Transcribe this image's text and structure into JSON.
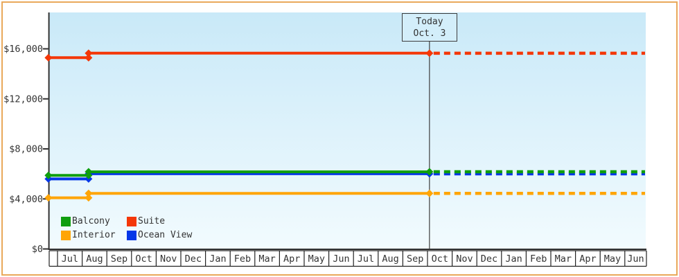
{
  "window": {
    "frame_border_color": "#e9a85a",
    "background_color": "#ffffff"
  },
  "today_annotation": {
    "line1": "Today",
    "line2": "Oct. 3"
  },
  "legend": {
    "position": "bottom-left-inside-plot",
    "items": [
      {
        "label": "Balcony",
        "color": "#0f9e0f"
      },
      {
        "label": "Suite",
        "color": "#f43708"
      },
      {
        "label": "Interior",
        "color": "#ffa507"
      },
      {
        "label": "Ocean View",
        "color": "#0537e8"
      }
    ]
  },
  "chart_data": {
    "type": "line",
    "title": "",
    "xlabel": "",
    "ylabel": "",
    "grid": false,
    "plot_background": {
      "top": "#c9e9f8",
      "bottom": "#f2fbfe"
    },
    "axis_color": "#2f2f2f",
    "y_axis": {
      "tick_labels": [
        "$0",
        "$4,000",
        "$8,000",
        "$12,000",
        "$16,000"
      ],
      "tick_values": [
        0,
        4000,
        8000,
        12000,
        16000
      ],
      "ylim": [
        0,
        18900
      ]
    },
    "x_axis": {
      "month_labels": [
        "Jul",
        "Aug",
        "Sep",
        "Oct",
        "Nov",
        "Dec",
        "Jan",
        "Feb",
        "Mar",
        "Apr",
        "May",
        "Jun",
        "Jul",
        "Aug",
        "Sep",
        "Oct",
        "Nov",
        "Dec",
        "Jan",
        "Feb",
        "Mar",
        "Apr",
        "May",
        "Jun"
      ]
    },
    "today": {
      "month_position": 15.08,
      "label": "Today Oct. 3"
    },
    "series": [
      {
        "name": "Balcony",
        "color": "#0f9e0f",
        "history": [
          {
            "month": -0.37,
            "value": 5880
          },
          {
            "month": 1.26,
            "value": 5880
          },
          {
            "month": 1.26,
            "value": 6170
          },
          {
            "month": 15.08,
            "value": 6170
          }
        ],
        "forecast": {
          "to_month": 23.82,
          "value": 6170,
          "style": "dashed"
        }
      },
      {
        "name": "Suite",
        "color": "#f43708",
        "history": [
          {
            "month": -0.37,
            "value": 15290
          },
          {
            "month": 1.26,
            "value": 15290
          },
          {
            "month": 1.26,
            "value": 15650
          },
          {
            "month": 15.08,
            "value": 15650
          }
        ],
        "forecast": {
          "to_month": 23.82,
          "value": 15650,
          "style": "dashed"
        }
      },
      {
        "name": "Interior",
        "color": "#ffa507",
        "history": [
          {
            "month": -0.37,
            "value": 4090
          },
          {
            "month": 1.26,
            "value": 4090
          },
          {
            "month": 1.26,
            "value": 4440
          },
          {
            "month": 15.08,
            "value": 4440
          }
        ],
        "forecast": {
          "to_month": 23.82,
          "value": 4440,
          "style": "dashed"
        }
      },
      {
        "name": "Ocean View",
        "color": "#0537e8",
        "history": [
          {
            "month": -0.37,
            "value": 5600
          },
          {
            "month": 1.26,
            "value": 5600
          },
          {
            "month": 1.26,
            "value": 6010
          },
          {
            "month": 15.08,
            "value": 6010
          }
        ],
        "forecast": {
          "to_month": 23.82,
          "value": 6010,
          "style": "dashed"
        }
      }
    ]
  }
}
